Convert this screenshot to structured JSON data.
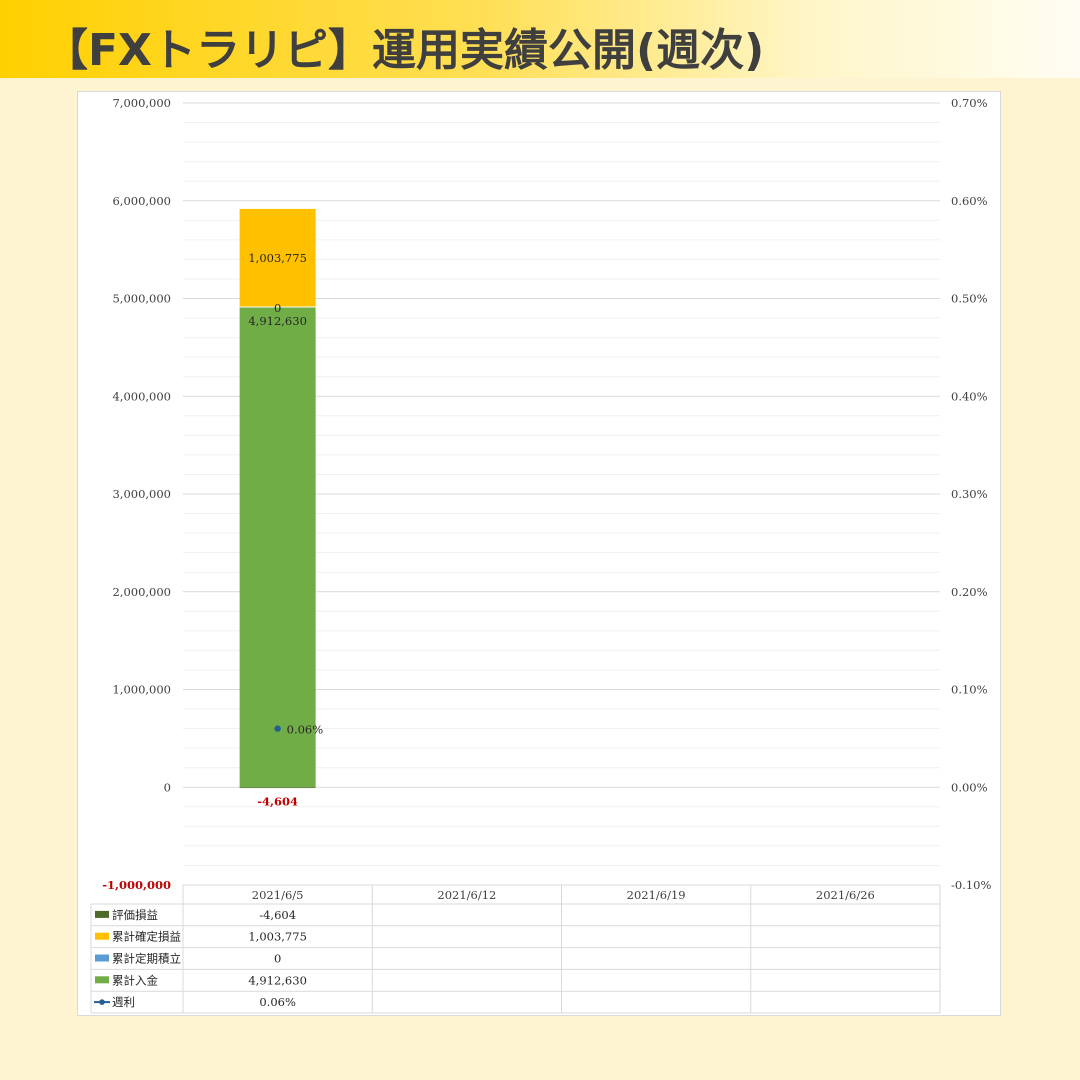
{
  "header": {
    "title": "【FXトラリピ】運用実績公開(週次)"
  },
  "chart_data": {
    "type": "bar",
    "stacked": true,
    "categories": [
      "2021/6/5",
      "2021/6/12",
      "2021/6/19",
      "2021/6/26"
    ],
    "y_left": {
      "min": -1000000,
      "max": 7000000,
      "major": 1000000,
      "minor": 200000,
      "tick_labels": [
        "-1,000,000",
        "0",
        "1,000,000",
        "2,000,000",
        "3,000,000",
        "4,000,000",
        "5,000,000",
        "6,000,000",
        "7,000,000"
      ],
      "negative_label_color": "#c00000"
    },
    "y_right": {
      "min": -0.1,
      "max": 0.7,
      "major": 0.1,
      "tick_labels": [
        "-0.10%",
        "0.00%",
        "0.10%",
        "0.20%",
        "0.30%",
        "0.40%",
        "0.50%",
        "0.60%",
        "0.70%"
      ]
    },
    "grid": true,
    "legend": "data-table",
    "series": [
      {
        "name": "評価損益",
        "color": "#4e6b2a",
        "values": [
          -4604,
          null,
          null,
          null
        ],
        "labels": [
          "-4,604",
          "",
          "",
          ""
        ],
        "label_color": "#c00000",
        "table": [
          "-4,604",
          "",
          "",
          ""
        ]
      },
      {
        "name": "累計確定損益",
        "color": "#ffc000",
        "values": [
          1003775,
          null,
          null,
          null
        ],
        "labels": [
          "1,003,775",
          "",
          "",
          ""
        ],
        "table": [
          "1,003,775",
          "",
          "",
          ""
        ]
      },
      {
        "name": "累計定期積立",
        "color": "#5b9bd5",
        "values": [
          0,
          null,
          null,
          null
        ],
        "labels": [
          "0",
          "",
          "",
          ""
        ],
        "table": [
          "0",
          "",
          "",
          ""
        ]
      },
      {
        "name": "累計入金",
        "color": "#70ad47",
        "values": [
          4912630,
          null,
          null,
          null
        ],
        "labels": [
          "4,912,630",
          "",
          "",
          ""
        ],
        "table": [
          "4,912,630",
          "",
          "",
          ""
        ]
      }
    ],
    "line_series": {
      "name": "週利",
      "color": "#255e91",
      "axis": "right",
      "values": [
        0.06,
        null,
        null,
        null
      ],
      "labels": [
        "0.06%",
        "",
        "",
        ""
      ],
      "table": [
        "0.06%",
        "",
        "",
        ""
      ]
    }
  }
}
